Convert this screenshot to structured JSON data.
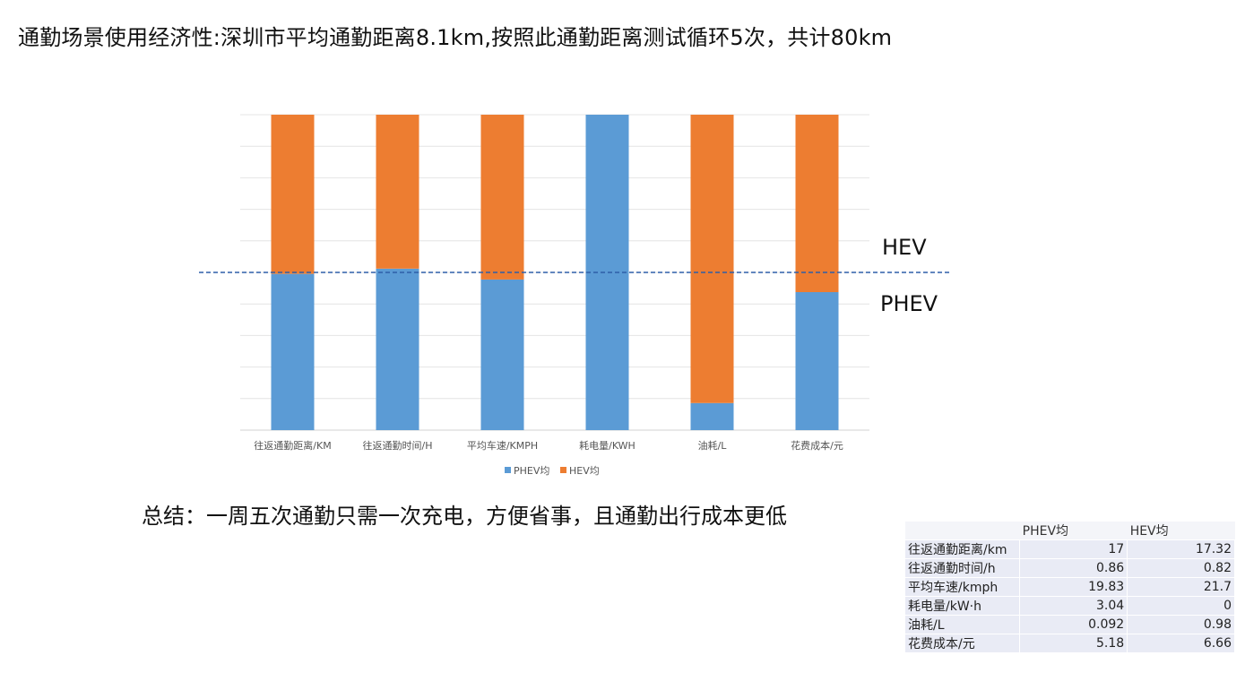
{
  "title": "通勤场景使用经济性:深圳市平均通勤距离8.1km,按照此通勤距离测试循环5次，共计80km",
  "summary": "总结：一周五次通勤只需一次充电，方便省事，且通勤出行成本更低",
  "chart_data": {
    "type": "bar",
    "stacked": "percent",
    "categories": [
      "往返通勤距离/KM",
      "往返通勤时间/H",
      "平均车速/KMPH",
      "耗电量/KWH",
      "油耗/L",
      "花费成本/元"
    ],
    "series": [
      {
        "name": "PHEV均",
        "color": "#5b9bd5",
        "values": [
          17,
          0.86,
          19.83,
          3.04,
          0.092,
          5.18
        ]
      },
      {
        "name": "HEV均",
        "color": "#ed7d31",
        "values": [
          17.32,
          0.82,
          21.7,
          0,
          0.98,
          6.66
        ]
      }
    ],
    "reference_line": {
      "value": 0.5,
      "color": "#2e5fa8",
      "style": "dashed"
    },
    "annotations": [
      "HEV",
      "PHEV"
    ],
    "legend_position": "bottom",
    "grid": true
  },
  "table": {
    "headers": [
      "",
      "PHEV均",
      "HEV均"
    ],
    "rows": [
      [
        "往返通勤距离/km",
        "17",
        "17.32"
      ],
      [
        "往返通勤时间/h",
        "0.86",
        "0.82"
      ],
      [
        "平均车速/kmph",
        "19.83",
        "21.7"
      ],
      [
        "耗电量/kW·h",
        "3.04",
        "0"
      ],
      [
        "油耗/L",
        "0.092",
        "0.98"
      ],
      [
        "花费成本/元",
        "5.18",
        "6.66"
      ]
    ]
  }
}
